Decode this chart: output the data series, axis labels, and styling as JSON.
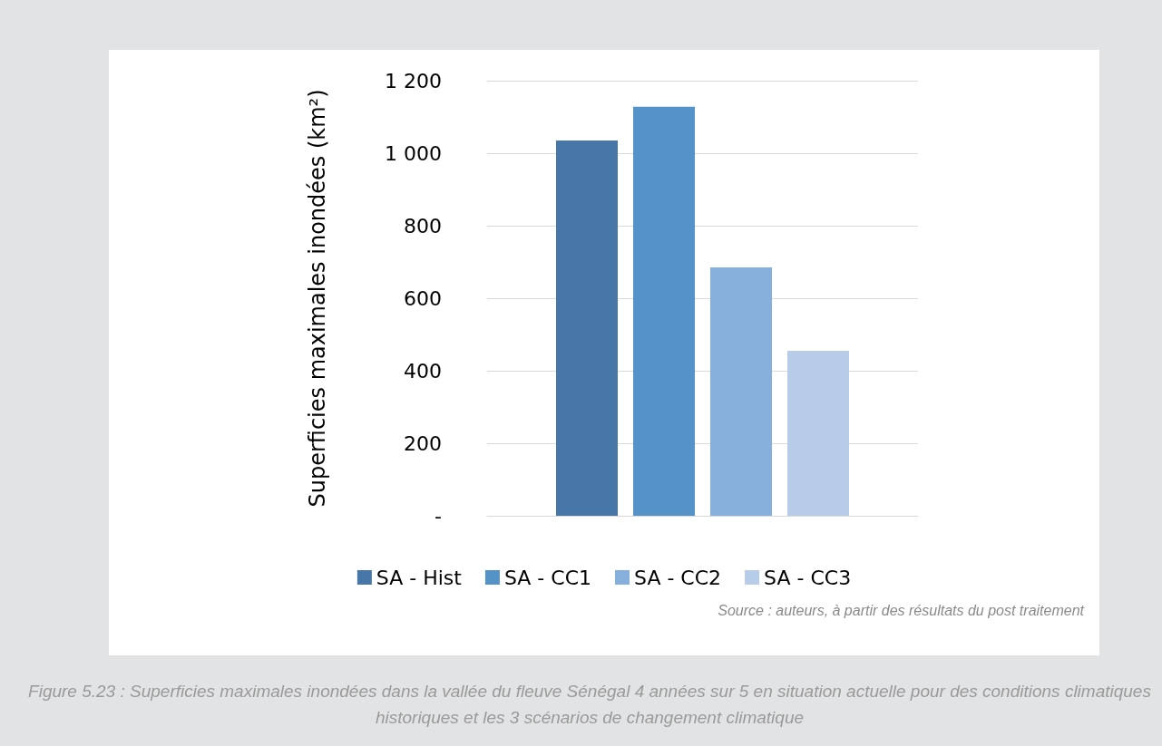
{
  "chart_data": {
    "type": "bar",
    "ylabel": "Superficies maximales inondées (km²)",
    "categories": [
      null
    ],
    "series": [
      {
        "name": "SA - Hist",
        "color": "#4677a8",
        "values": [
          1035
        ]
      },
      {
        "name": "SA - CC1",
        "color": "#5592c8",
        "values": [
          1128
        ]
      },
      {
        "name": "SA - CC2",
        "color": "#86afdc",
        "values": [
          685
        ]
      },
      {
        "name": "SA - CC3",
        "color": "#b6cce8",
        "values": [
          455
        ]
      }
    ],
    "ylim": [
      0,
      1200
    ],
    "yticks": [
      {
        "value": 0,
        "label": "-"
      },
      200,
      400,
      600,
      800,
      {
        "value": 1000,
        "label": "1 000"
      },
      {
        "value": 1200,
        "label": "1 200"
      }
    ],
    "grid": "y",
    "legend": "bottom",
    "annotations": [
      "Source : auteurs, à partir des résultats du post traitement",
      "Figure 5.23 : Superficies maximales inondées dans la vallée du fleuve Sénégal 4 années sur 5 en situation actuelle pour des conditions climatiques historiques et les 3 scénarios de changement climatique"
    ]
  }
}
